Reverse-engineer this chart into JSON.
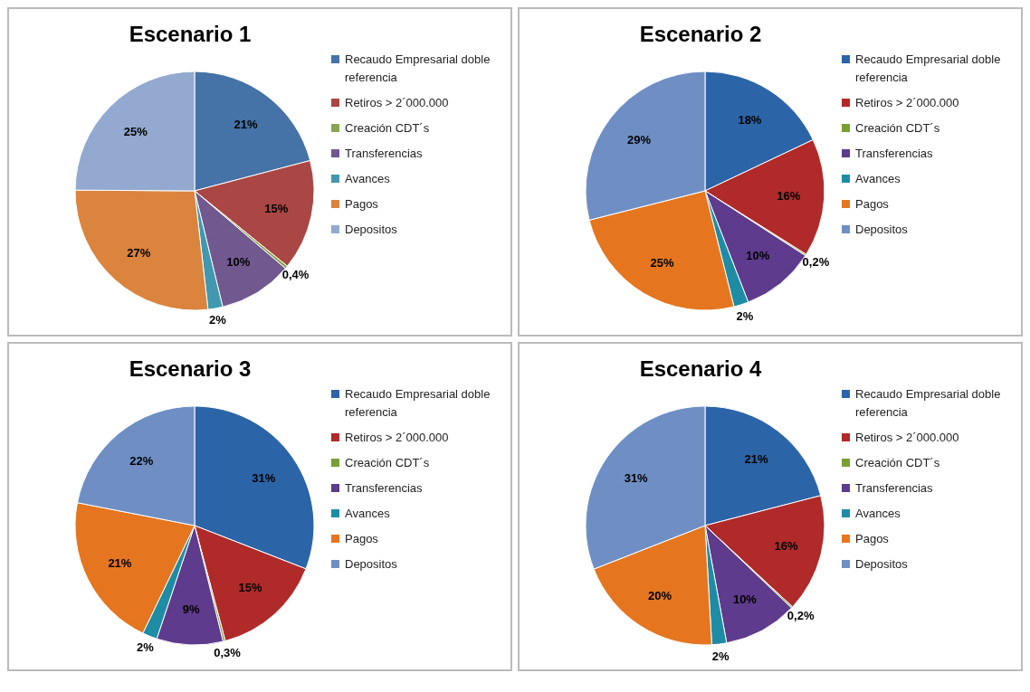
{
  "chart_data": [
    {
      "type": "pie",
      "title": "Escenario 1",
      "legend": "right",
      "categories": [
        "Recaudo Empresarial doble referencia",
        "Retiros > 2´000.000",
        "Creación CDT´s",
        "Transferencias",
        "Avances",
        "Pagos",
        "Depositos"
      ],
      "values": [
        21,
        15,
        0.4,
        10,
        2,
        27,
        25
      ],
      "value_labels": [
        "21%",
        "15%",
        "0,4%",
        "10%",
        "2%",
        "27%",
        "25%"
      ],
      "colors": [
        "#4572a7",
        "#aa4643",
        "#89a54e",
        "#71588f",
        "#4198af",
        "#db843d",
        "#93a9cf"
      ]
    },
    {
      "type": "pie",
      "title": "Escenario 2",
      "legend": "right",
      "categories": [
        "Recaudo Empresarial doble referencia",
        "Retiros > 2´000.000",
        "Creación CDT´s",
        "Transferencias",
        "Avances",
        "Pagos",
        "Depositos"
      ],
      "values": [
        18,
        16,
        0.2,
        10,
        2,
        25,
        29
      ],
      "value_labels": [
        "18%",
        "16%",
        "0,2%",
        "10%",
        "2%",
        "25%",
        "29%"
      ],
      "colors": [
        "#2c64a8",
        "#b02a2a",
        "#77a033",
        "#5e3b8c",
        "#1f8ca6",
        "#e5761f",
        "#6f8fc4"
      ]
    },
    {
      "type": "pie",
      "title": "Escenario 3",
      "legend": "right",
      "categories": [
        "Recaudo Empresarial doble referencia",
        "Retiros > 2´000.000",
        "Creación CDT´s",
        "Transferencias",
        "Avances",
        "Pagos",
        "Depositos"
      ],
      "values": [
        31,
        15,
        0.3,
        9,
        2,
        21,
        22
      ],
      "value_labels": [
        "31%",
        "15%",
        "0,3%",
        "9%",
        "2%",
        "21%",
        "22%"
      ],
      "colors": [
        "#2c64a8",
        "#b02a2a",
        "#77a033",
        "#5e3b8c",
        "#1f8ca6",
        "#e5761f",
        "#6f8fc4"
      ]
    },
    {
      "type": "pie",
      "title": "Escenario 4",
      "legend": "right",
      "categories": [
        "Recaudo Empresarial doble referencia",
        "Retiros > 2´000.000",
        "Creación CDT´s",
        "Transferencias",
        "Avances",
        "Pagos",
        "Depositos"
      ],
      "values": [
        21,
        16,
        0.2,
        10,
        2,
        20,
        31
      ],
      "value_labels": [
        "21%",
        "16%",
        "0,2%",
        "10%",
        "2%",
        "20%",
        "31%"
      ],
      "colors": [
        "#2c64a8",
        "#b02a2a",
        "#77a033",
        "#5e3b8c",
        "#1f8ca6",
        "#e5761f",
        "#6f8fc4"
      ]
    }
  ]
}
